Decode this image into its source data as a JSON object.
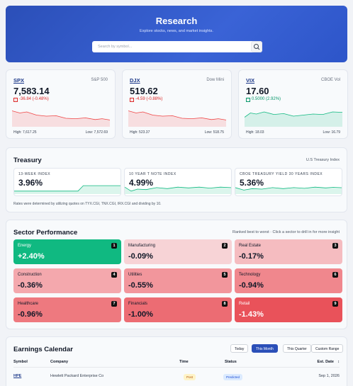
{
  "header": {
    "title": "Research",
    "subtitle": "Explore stocks, news, and market insights.",
    "search_placeholder": "Search by symbol..."
  },
  "indices": [
    {
      "symbol": "SPX",
      "name": "S&P 500",
      "value": "7,583.14",
      "change": "-36.84 (-0.48%)",
      "high": "High: 7,617.25",
      "low": "Low: 7,572.69"
    },
    {
      "symbol": "DJX",
      "name": "Dow Mini",
      "value": "519.62",
      "change": "-4.59 (-0.88%)",
      "high": "High: 523.37",
      "low": "Low: 518.75"
    },
    {
      "symbol": "VIX",
      "name": "CBOE Vol",
      "value": "17.60",
      "change": "0.5000 (2.92%)",
      "high": "High: 18.03",
      "low": "Low: 16.79"
    }
  ],
  "treasury": {
    "title": "Treasury",
    "subtitle": "U.S Treasury Index",
    "items": [
      {
        "label": "13-WEEK INDEX",
        "value": "3.96%"
      },
      {
        "label": "10 YEAR T NOTE INDEX",
        "value": "4.99%"
      },
      {
        "label": "CBOE TREASURY YIELD 30 YEARS INDEX",
        "value": "5.36%"
      }
    ],
    "note": "Rates were determined by utilizing quotes on TYX.CGI, TNX.CGI, IRX.CGI and dividing by 10."
  },
  "sectors": {
    "title": "Sector Performance",
    "hint": "Ranked best to worst · Click a sector to drill in for more insight",
    "tiles": [
      {
        "name": "Energy",
        "rank": 1,
        "change": "+2.40%"
      },
      {
        "name": "Manufacturing",
        "rank": 2,
        "change": "-0.09%"
      },
      {
        "name": "Real Estate",
        "rank": 3,
        "change": "-0.17%"
      },
      {
        "name": "Construction",
        "rank": 4,
        "change": "-0.36%"
      },
      {
        "name": "Utilities",
        "rank": 5,
        "change": "-0.55%"
      },
      {
        "name": "Technology",
        "rank": 6,
        "change": "-0.94%"
      },
      {
        "name": "Healthcare",
        "rank": 7,
        "change": "-0.96%"
      },
      {
        "name": "Financials",
        "rank": 8,
        "change": "-1.00%"
      },
      {
        "name": "Retail",
        "rank": 9,
        "change": "-1.43%"
      }
    ]
  },
  "earnings": {
    "title": "Earnings Calendar",
    "filters": [
      "Today",
      "This Month",
      "This Quarter",
      "Custom Range"
    ],
    "columns": [
      "Symbol",
      "Company",
      "Time",
      "Status",
      "Est. Date"
    ],
    "rows": [
      [
        "HPE",
        "Hewlett Packard Enterprise Co",
        "Post",
        "Predicted",
        "Sep 1, 2026"
      ]
    ]
  }
}
